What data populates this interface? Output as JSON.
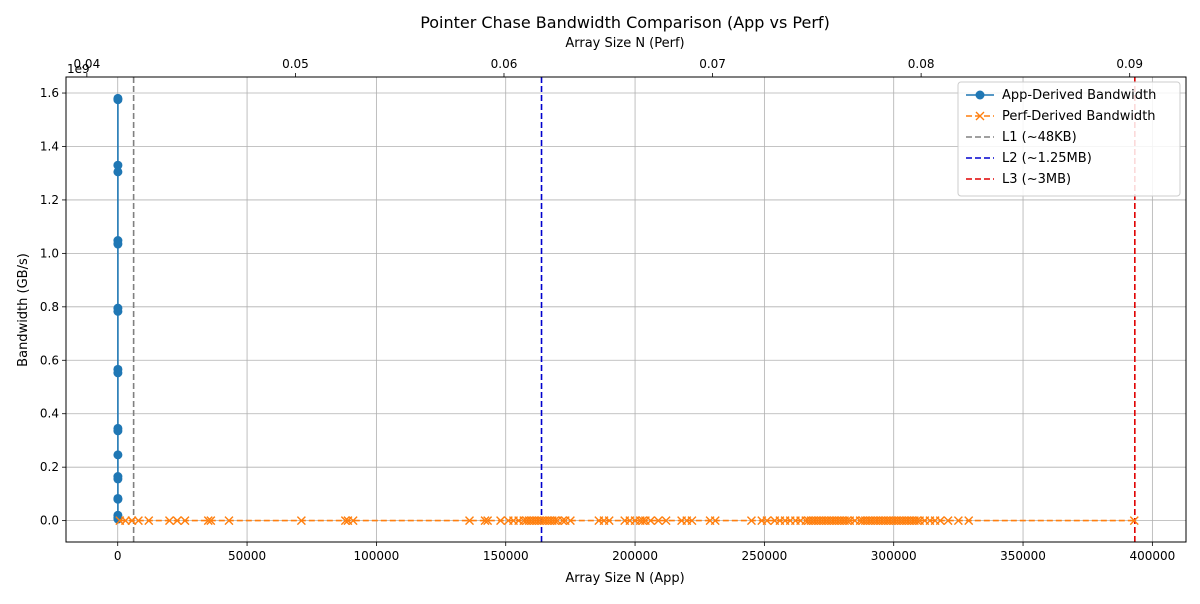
{
  "chart_data": {
    "type": "line",
    "title": "Pointer Chase Bandwidth Comparison (App vs Perf)",
    "xlabel": "Array Size N (App)",
    "ylabel": "Bandwidth (GB/s)",
    "x2label": "Array Size N (Perf)",
    "y_offset_label": "1e9",
    "xlim": [
      -20000,
      413000
    ],
    "ylim": [
      -80000000,
      1660000000
    ],
    "x2lim": [
      0.039,
      0.0927
    ],
    "grid": true,
    "legend_position": "top-right",
    "x_ticks": [
      0,
      50000,
      100000,
      150000,
      200000,
      250000,
      300000,
      350000,
      400000
    ],
    "x_tick_labels": [
      "0",
      "50000",
      "100000",
      "150000",
      "200000",
      "250000",
      "300000",
      "350000",
      "400000"
    ],
    "x2_ticks": [
      0.04,
      0.05,
      0.06,
      0.07,
      0.08,
      0.09
    ],
    "x2_tick_labels": [
      "0.04",
      "0.05",
      "0.06",
      "0.07",
      "0.08",
      "0.09"
    ],
    "y_ticks": [
      0,
      200000000,
      400000000,
      600000000,
      800000000,
      1000000000,
      1200000000,
      1400000000,
      1600000000
    ],
    "y_tick_labels": [
      "0.0",
      "0.2",
      "0.4",
      "0.6",
      "0.8",
      "1.0",
      "1.2",
      "1.4",
      "1.6"
    ],
    "legend": [
      "App-Derived Bandwidth",
      "Perf-Derived Bandwidth",
      "L1 (~48KB)",
      "L2 (~1.25MB)",
      "L3 (~3MB)"
    ],
    "series": [
      {
        "name": "App-Derived Bandwidth",
        "color": "#1f77b4",
        "marker": "circle",
        "linestyle": "solid",
        "x": [
          64,
          64,
          64,
          64,
          64,
          64,
          64,
          64,
          64,
          64,
          64,
          64,
          64,
          64,
          64,
          64,
          64,
          64,
          64,
          64
        ],
        "y": [
          1580000000,
          1575000000,
          1330000000,
          1305000000,
          1048000000,
          1035000000,
          795000000,
          783000000,
          566000000,
          553000000,
          345000000,
          336000000,
          246000000,
          165000000,
          156000000,
          83000000,
          80000000,
          20000000,
          12000000,
          6000000
        ]
      },
      {
        "name": "Perf-Derived Bandwidth",
        "color": "#ff7f0e",
        "marker": "x",
        "linestyle": "dashed",
        "x": [
          800,
          3000,
          5500,
          8000,
          12000,
          20000,
          23000,
          26000,
          35000,
          36000,
          43000,
          71000,
          88000,
          89000,
          91000,
          136000,
          142000,
          143000,
          148000,
          151000,
          153000,
          155000,
          157000,
          158000,
          159000,
          160000,
          161000,
          162000,
          163000,
          164000,
          165000,
          166000,
          167000,
          168000,
          169000,
          170000,
          172000,
          173000,
          175000,
          186000,
          188000,
          190000,
          196000,
          198000,
          200000,
          202000,
          203000,
          204000,
          206000,
          209000,
          212000,
          218000,
          220000,
          222000,
          229000,
          231000,
          245000,
          249000,
          251000,
          254000,
          256000,
          258000,
          260000,
          262000,
          264000,
          266000,
          267000,
          268000,
          269000,
          270000,
          271000,
          272000,
          273000,
          274000,
          275000,
          276000,
          277000,
          278000,
          279000,
          280000,
          281000,
          282000,
          283000,
          285000,
          287000,
          288000,
          289000,
          290000,
          291000,
          292000,
          293000,
          294000,
          295000,
          296000,
          297000,
          298000,
          299000,
          300000,
          301000,
          302000,
          303000,
          304000,
          305000,
          306000,
          307000,
          308000,
          309000,
          310000,
          312000,
          314000,
          316000,
          318000,
          321000,
          325000,
          329000,
          393000
        ],
        "y": [
          0,
          0,
          0,
          0,
          0,
          0,
          0,
          0,
          0,
          0,
          0,
          0,
          0,
          0,
          0,
          0,
          0,
          0,
          0,
          0,
          0,
          0,
          0,
          0,
          0,
          0,
          0,
          0,
          0,
          0,
          0,
          0,
          0,
          0,
          0,
          0,
          0,
          0,
          0,
          0,
          0,
          0,
          0,
          0,
          0,
          0,
          0,
          0,
          0,
          0,
          0,
          0,
          0,
          0,
          0,
          0,
          0,
          0,
          0,
          0,
          0,
          0,
          0,
          0,
          0,
          0,
          0,
          0,
          0,
          0,
          0,
          0,
          0,
          0,
          0,
          0,
          0,
          0,
          0,
          0,
          0,
          0,
          0,
          0,
          0,
          0,
          0,
          0,
          0,
          0,
          0,
          0,
          0,
          0,
          0,
          0,
          0,
          0,
          0,
          0,
          0,
          0,
          0,
          0,
          0,
          0,
          0,
          0,
          0,
          0,
          0,
          0,
          0,
          0,
          0,
          0
        ]
      }
    ],
    "vlines": [
      {
        "name": "L1 (~48KB)",
        "x": 6144,
        "color": "#808080",
        "linestyle": "dashed"
      },
      {
        "name": "L2 (~1.25MB)",
        "x": 163840,
        "color": "#0000cd",
        "linestyle": "dashed"
      },
      {
        "name": "L3 (~3MB)",
        "x": 393216,
        "color": "#e00000",
        "linestyle": "dashed"
      }
    ]
  }
}
